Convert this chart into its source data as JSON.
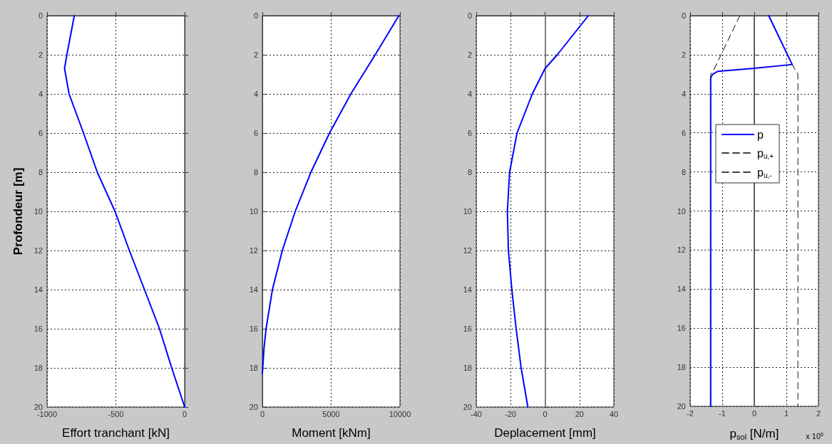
{
  "chart_data": [
    {
      "type": "line",
      "xlabel": "Effort tranchant [kN]",
      "ylabel": "Profondeur [m]",
      "xlim": [
        -1000,
        0
      ],
      "xticks": [
        -1000,
        -500,
        0
      ],
      "ylim": [
        20,
        0
      ],
      "yticks": [
        0,
        2,
        4,
        6,
        8,
        10,
        12,
        14,
        16,
        18,
        20
      ],
      "grid": true,
      "legend": false,
      "series": [
        {
          "color": "#0000ff",
          "x": [
            -802,
            -856,
            -873,
            -840,
            -735,
            -635,
            -506,
            -402,
            -292,
            -183,
            -94,
            0
          ],
          "values": [
            0,
            2,
            2.7,
            4,
            6,
            8,
            10,
            12,
            14,
            16,
            18,
            20
          ]
        }
      ]
    },
    {
      "type": "line",
      "xlabel": "Moment [kNm]",
      "xlim": [
        0,
        10000
      ],
      "xticks": [
        0,
        5000,
        10000
      ],
      "ylim": [
        20,
        0
      ],
      "yticks": [
        0,
        2,
        4,
        6,
        8,
        10,
        12,
        14,
        16,
        18,
        20
      ],
      "grid": true,
      "legend": false,
      "series": [
        {
          "color": "#0000ff",
          "x": [
            9920,
            8200,
            6430,
            4880,
            3530,
            2390,
            1450,
            730,
            270,
            120,
            0
          ],
          "values": [
            0,
            2,
            4,
            6,
            8,
            10,
            12,
            14,
            16,
            17,
            18.3
          ]
        }
      ]
    },
    {
      "type": "line",
      "xlabel": "Deplacement [mm]",
      "xlim": [
        -40,
        40
      ],
      "xticks": [
        -40,
        -20,
        0,
        20,
        40
      ],
      "ylim": [
        20,
        0
      ],
      "yticks": [
        0,
        2,
        4,
        6,
        8,
        10,
        12,
        14,
        16,
        18,
        20
      ],
      "grid": true,
      "legend": false,
      "ref_lines": [
        {
          "axis": "x",
          "value": 0,
          "color": "#808080"
        }
      ],
      "series": [
        {
          "color": "#0000ff",
          "x": [
            25.2,
            7.1,
            0,
            -7.4,
            -16.3,
            -20.6,
            -21.9,
            -21.3,
            -19.3,
            -16.8,
            -13.9,
            -10
          ],
          "values": [
            0,
            2,
            2.7,
            4,
            6,
            8,
            10,
            12,
            14,
            16,
            18,
            20
          ]
        }
      ]
    },
    {
      "type": "line",
      "xlabel": "p$_{sol}$ [N/m]",
      "xlim": [
        -2,
        2
      ],
      "xticks": [
        -2,
        -1,
        0,
        1,
        2
      ],
      "ylim": [
        20,
        0
      ],
      "yticks": [
        0,
        2,
        4,
        6,
        8,
        10,
        12,
        14,
        16,
        18,
        20
      ],
      "grid": true,
      "legend": "left",
      "annotations": [
        "x 10$^{5}$"
      ],
      "ref_lines": [
        {
          "axis": "x",
          "value": 0,
          "color": "#606060"
        }
      ],
      "series": [
        {
          "name": "p",
          "color": "#0000ff",
          "line_style": "solid",
          "x": [
            0.45,
            1.18,
            0,
            -1.13,
            -1.3,
            -1.36,
            -1.36
          ],
          "values": [
            0,
            2.5,
            2.7,
            2.85,
            3,
            3.2,
            20
          ]
        },
        {
          "name": "p$_{u,+}$",
          "color": "#404040",
          "line_style": "dashed",
          "x": [
            0.45,
            1.18,
            1.36,
            1.36
          ],
          "values": [
            0,
            2.5,
            3,
            20
          ]
        },
        {
          "name": "p$_{u,-}$",
          "color": "#404040",
          "line_style": "dashed",
          "x": [
            -0.45,
            -1.24,
            -1.36,
            -1.36
          ],
          "values": [
            0,
            2.7,
            3,
            20
          ]
        }
      ]
    }
  ]
}
